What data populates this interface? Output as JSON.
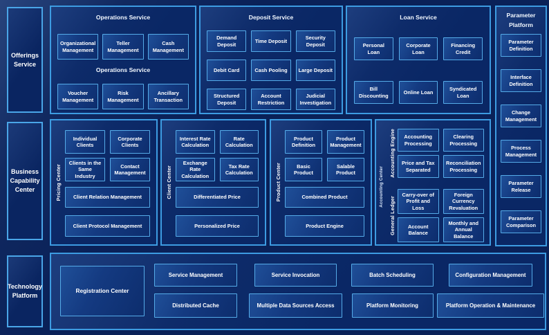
{
  "colors": {
    "page_bg": "#0a2158",
    "panel_bg": "#0a2765",
    "box_bg": "#143a81",
    "border": "#3d9ce2",
    "box_border": "#55ace9",
    "text": "#ffffff"
  },
  "offerings": {
    "label": "Offerings Service"
  },
  "operations": {
    "title": "Operations Service",
    "subtitle": "Operations Service",
    "row1": [
      "Organizational Management",
      "Teller Management",
      "Cash Management"
    ],
    "row2": [
      "Voucher Management",
      "Risk Management",
      "Ancillary Transaction"
    ]
  },
  "deposit": {
    "title": "Deposit Service",
    "boxes": [
      "Demand Deposit",
      "Time Deposit",
      "Security Deposit",
      "Debit Card",
      "Cash Pooling",
      "Large Deposit",
      "Structured Deposit",
      "Account Restriction",
      "Judicial Investigation"
    ]
  },
  "loan": {
    "title": "Loan Service",
    "boxes": [
      "Personal Loan",
      "Corporate Loan",
      "Financing Credit",
      "Bill Discounting",
      "Online Loan",
      "Syndicated Loan"
    ]
  },
  "parameter": {
    "title": "Parameter Platform",
    "boxes": [
      "Parameter Definition",
      "Interface Definition",
      "Change Management",
      "Process Management",
      "Parameter Release",
      "Parameter Comparison"
    ]
  },
  "business_capability": {
    "label": "Business Capability Center"
  },
  "pricing_center": {
    "vertical_label": "Pricing Center",
    "boxes": [
      "Individual Clients",
      "Corporate Clients",
      "Clients in the Same Industry",
      "Contact Management"
    ],
    "wide_boxes": [
      "Client Relation Management",
      "Client Protocol Management"
    ]
  },
  "client_center": {
    "vertical_label": "Client Center",
    "boxes": [
      "Interest Rate Calculation",
      "Rate Calculation",
      "Exchange Rate Calculation",
      "Tax Rate Calculation"
    ],
    "wide_boxes": [
      "Differentiated Price",
      "Personalized Price"
    ]
  },
  "product_center": {
    "vertical_label": "Product Center",
    "boxes": [
      "Product Definition",
      "Product Management",
      "Basic Product",
      "Salable Product"
    ],
    "wide_boxes": [
      "Combined Product",
      "Product Engine"
    ]
  },
  "accounting_center": {
    "vertical_label": "Accounting Center",
    "engine": {
      "vertical_label": "Accounting Engine",
      "boxes": [
        "Accounting Processing",
        "Clearing Processing",
        "Price and Tax Separated",
        "Reconciliation Processing"
      ]
    },
    "ledger": {
      "vertical_label": "General Ledger",
      "boxes": [
        "Carry-over of Profit and Loss",
        "Foreign Currency Revaluation",
        "Account Balance",
        "Monthly and Annual Balance"
      ]
    }
  },
  "technology": {
    "label": "Technology Platform",
    "registration": "Registration Center",
    "top_row": [
      "Service Management",
      "Service Invocation",
      "Batch Scheduling",
      "Configuration Management"
    ],
    "bottom_row": [
      "Distributed Cache",
      "Multiple Data Sources Access",
      "Platform Monitoring",
      "Platform Operation & Maintenance"
    ]
  }
}
